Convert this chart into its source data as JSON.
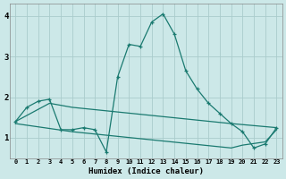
{
  "title": "",
  "xlabel": "Humidex (Indice chaleur)",
  "xlim": [
    -0.5,
    23.5
  ],
  "ylim": [
    0.5,
    4.3
  ],
  "yticks": [
    1,
    2,
    3,
    4
  ],
  "xticks": [
    0,
    1,
    2,
    3,
    4,
    5,
    6,
    7,
    8,
    9,
    10,
    11,
    12,
    13,
    14,
    15,
    16,
    17,
    18,
    19,
    20,
    21,
    22,
    23
  ],
  "bg_color": "#cce8e8",
  "line_color": "#1a7a70",
  "grid_color": "#aacccc",
  "line1_x": [
    0,
    1,
    2,
    3,
    4,
    5,
    6,
    7,
    8,
    9,
    10,
    11,
    12,
    13,
    14,
    15,
    16,
    17,
    18,
    19,
    20,
    21,
    22,
    23
  ],
  "line1_y": [
    1.4,
    1.75,
    1.9,
    1.95,
    1.2,
    1.2,
    1.25,
    1.2,
    0.65,
    2.5,
    3.3,
    3.25,
    3.85,
    4.05,
    3.55,
    2.65,
    2.2,
    1.85,
    1.6,
    1.35,
    1.15,
    0.75,
    0.85,
    1.25
  ],
  "line2_x": [
    0,
    3,
    5,
    19,
    23
  ],
  "line2_y": [
    1.4,
    1.85,
    1.75,
    1.35,
    1.25
  ],
  "line3_x": [
    0,
    5,
    19,
    20,
    22,
    23
  ],
  "line3_y": [
    1.35,
    1.15,
    0.75,
    0.82,
    0.9,
    1.2
  ]
}
